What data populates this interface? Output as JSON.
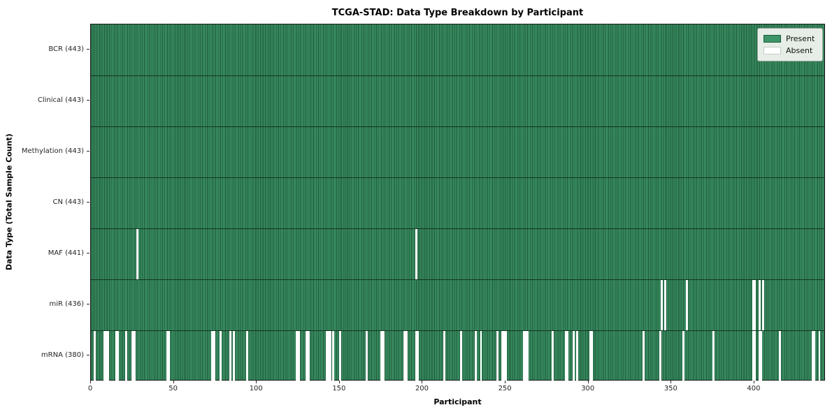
{
  "title": "TCGA-STAD: Data Type Breakdown by Participant",
  "legend": {
    "present_label": "Present",
    "absent_label": "Absent"
  },
  "colors": {
    "present_fill": "#3d9468",
    "cell_edge": "#1c5535",
    "absent_fill": "#ffffff",
    "swatch_present_edge": "#1b5e3a",
    "swatch_absent_edge": "#c8cdc8"
  },
  "chart_data": {
    "type": "heatmap",
    "title": "TCGA-STAD: Data Type Breakdown by Participant",
    "xlabel": "Participant",
    "ylabel": "Data Type (Total Sample Count)",
    "legend": [
      "Present",
      "Absent"
    ],
    "legend_position": "upper right",
    "n_participants": 443,
    "x_range": [
      0,
      443
    ],
    "x_ticks": [
      0,
      50,
      100,
      150,
      200,
      250,
      300,
      350,
      400
    ],
    "rows": [
      {
        "label": "BCR (443)",
        "data_type": "BCR",
        "total": 443,
        "absent_participants": []
      },
      {
        "label": "Clinical (443)",
        "data_type": "Clinical",
        "total": 443,
        "absent_participants": []
      },
      {
        "label": "Methylation (443)",
        "data_type": "Methylation",
        "total": 443,
        "absent_participants": []
      },
      {
        "label": "CN (443)",
        "data_type": "CN",
        "total": 443,
        "absent_participants": []
      },
      {
        "label": "MAF (441)",
        "data_type": "MAF",
        "total": 441,
        "absent_participants": [
          28,
          196
        ]
      },
      {
        "label": "miR (436)",
        "data_type": "miR",
        "total": 436,
        "absent_participants": [
          344,
          346,
          359,
          399,
          400,
          403,
          405
        ]
      },
      {
        "label": "mRNA (380)",
        "data_type": "mRNA",
        "total": 380,
        "absent_participants": [
          2,
          8,
          9,
          10,
          15,
          16,
          21,
          25,
          26,
          46,
          47,
          73,
          74,
          78,
          84,
          86,
          94,
          124,
          125,
          130,
          131,
          142,
          143,
          144,
          146,
          150,
          166,
          175,
          176,
          189,
          190,
          196,
          197,
          213,
          223,
          232,
          235,
          245,
          248,
          249,
          250,
          261,
          262,
          263,
          278,
          286,
          287,
          291,
          293,
          301,
          302,
          333,
          343,
          357,
          375,
          399,
          400,
          403,
          404,
          415,
          435,
          436,
          439
        ]
      }
    ]
  }
}
